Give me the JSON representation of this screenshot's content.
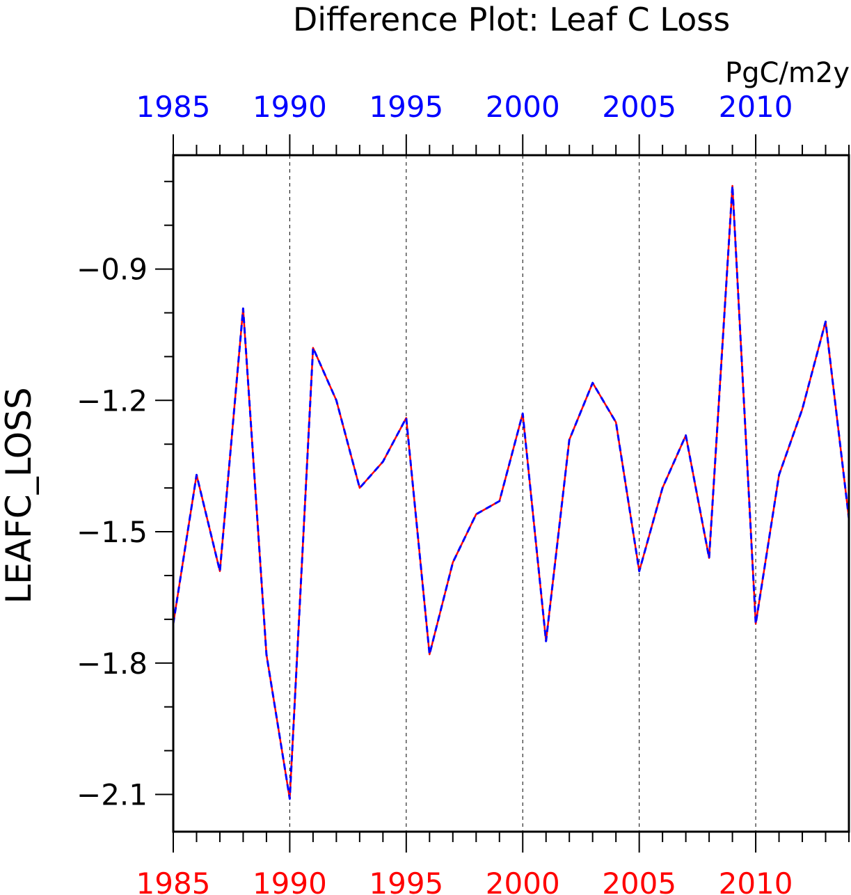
{
  "chart_data": {
    "type": "line",
    "title": "Difference Plot: Leaf C Loss",
    "units": "PgC/m2y",
    "xlabel": "",
    "ylabel": "LEAFC_LOSS",
    "xlim": [
      1985,
      2014
    ],
    "ylim": [
      -2.185,
      -0.64
    ],
    "x_ticks_major": [
      1985,
      1990,
      1995,
      2000,
      2005,
      2010
    ],
    "x_ticks_minor_step": 1,
    "y_ticks_major": [
      -0.9,
      -1.2,
      -1.5,
      -1.8,
      -2.1
    ],
    "y_tick_labels": [
      "−0.9",
      "−1.2",
      "−1.5",
      "−1.8",
      "−2.1"
    ],
    "y_ticks_minor_step": 0.1,
    "grid": "vertical dashed at major x ticks",
    "top_axis_label_color": "#0000ff",
    "bottom_axis_label_color": "#ff0000",
    "x": [
      1985,
      1986,
      1987,
      1988,
      1989,
      1990,
      1991,
      1992,
      1993,
      1994,
      1995,
      1996,
      1997,
      1998,
      1999,
      2000,
      2001,
      2002,
      2003,
      2004,
      2005,
      2006,
      2007,
      2008,
      2009,
      2010,
      2011,
      2012,
      2013,
      2014
    ],
    "series": [
      {
        "color": "#ff0000",
        "style": "solid",
        "values": [
          -1.71,
          -1.37,
          -1.59,
          -0.99,
          -1.78,
          -2.11,
          -1.08,
          -1.2,
          -1.4,
          -1.34,
          -1.24,
          -1.78,
          -1.57,
          -1.46,
          -1.43,
          -1.23,
          -1.75,
          -1.29,
          -1.16,
          -1.25,
          -1.59,
          -1.4,
          -1.28,
          -1.56,
          -0.71,
          -1.71,
          -1.37,
          -1.22,
          -1.02,
          -1.47
        ]
      },
      {
        "color": "#0000ff",
        "style": "dashed",
        "values": [
          -1.71,
          -1.37,
          -1.59,
          -0.99,
          -1.78,
          -2.11,
          -1.08,
          -1.2,
          -1.4,
          -1.34,
          -1.24,
          -1.78,
          -1.57,
          -1.46,
          -1.43,
          -1.23,
          -1.75,
          -1.29,
          -1.16,
          -1.25,
          -1.59,
          -1.4,
          -1.28,
          -1.56,
          -0.71,
          -1.71,
          -1.37,
          -1.22,
          -1.02,
          -1.47
        ]
      }
    ]
  }
}
